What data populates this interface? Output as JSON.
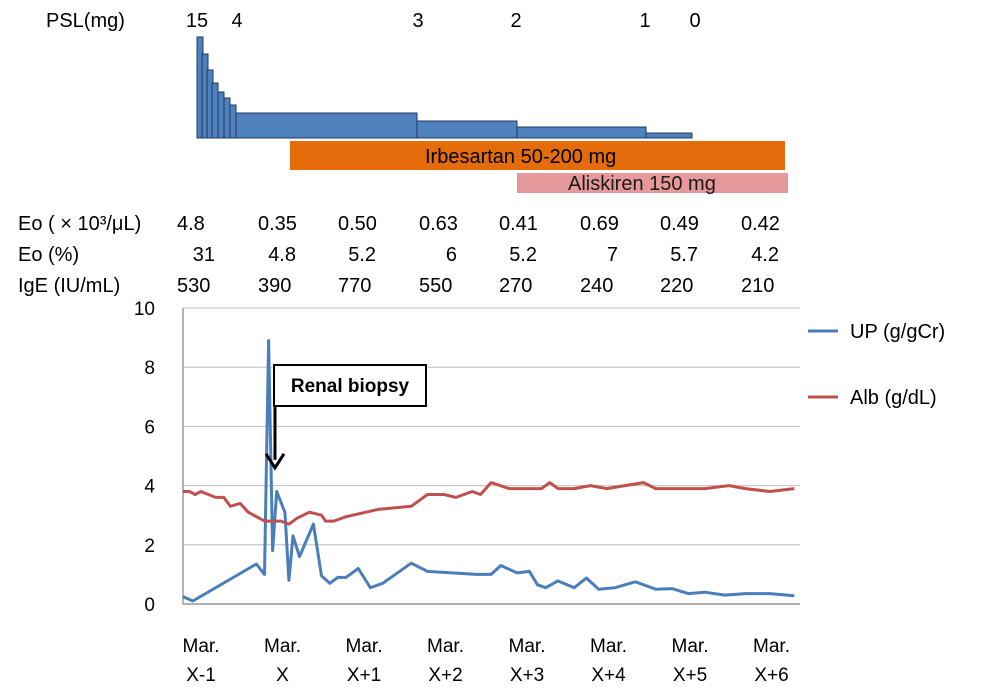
{
  "chart_data": {
    "type": "line",
    "psl": {
      "label": "PSL(mg)",
      "dose_labels": [
        "15",
        "4",
        "3",
        "2",
        "1",
        "0"
      ]
    },
    "drugs": [
      {
        "name": "Irbesartan 50-200 mg",
        "color": "#e46c0a",
        "start": 0.32,
        "end": 7.32
      },
      {
        "name": "Aliskiren 150 mg",
        "color": "#e6999a",
        "start": 3.05,
        "end": 7.32
      }
    ],
    "lab_table": {
      "rows": [
        {
          "label": "Eo ( × 10³/μL)",
          "values": [
            "4.8",
            "0.35",
            "0.50",
            "0.63",
            "0.41",
            "0.69",
            "0.49",
            "0.42"
          ]
        },
        {
          "label": "Eo (%)",
          "values": [
            "31",
            "4.8",
            "5.2",
            "6",
            "5.2",
            "7",
            "5.7",
            "4.2"
          ]
        },
        {
          "label": "IgE (IU/mL)",
          "values": [
            "530",
            "390",
            "770",
            "550",
            "270",
            "240",
            "220",
            "210"
          ]
        }
      ]
    },
    "categories": [
      "Mar.\nX-1",
      "Mar.\nX",
      "Mar.\nX+1",
      "Mar.\nX+2",
      "Mar.\nX+3",
      "Mar.\nX+4",
      "Mar.\nX+5",
      "Mar.\nX+6"
    ],
    "ylim": [
      0,
      10
    ],
    "yticks": [
      "0",
      "2",
      "4",
      "6",
      "8",
      "10"
    ],
    "annotation": {
      "text": "Renal biopsy",
      "x": 0.05,
      "y": 4.6
    },
    "series": [
      {
        "name": "UP (g/gCr)",
        "color": "#4a7ebb",
        "points": [
          [
            -1.0,
            0.25
          ],
          [
            -0.88,
            0.1
          ],
          [
            -0.1,
            1.35
          ],
          [
            0.0,
            1.0
          ],
          [
            0.05,
            8.9
          ],
          [
            0.1,
            1.8
          ],
          [
            0.15,
            3.8
          ],
          [
            0.25,
            3.1
          ],
          [
            0.3,
            0.8
          ],
          [
            0.35,
            2.3
          ],
          [
            0.43,
            1.6
          ],
          [
            0.6,
            2.7
          ],
          [
            0.7,
            0.95
          ],
          [
            0.8,
            0.7
          ],
          [
            0.9,
            0.9
          ],
          [
            1.0,
            0.9
          ],
          [
            1.15,
            1.2
          ],
          [
            1.3,
            0.55
          ],
          [
            1.45,
            0.7
          ],
          [
            1.8,
            1.38
          ],
          [
            2.0,
            1.1
          ],
          [
            2.3,
            1.05
          ],
          [
            2.6,
            1.0
          ],
          [
            2.78,
            1.0
          ],
          [
            2.9,
            1.3
          ],
          [
            3.1,
            1.05
          ],
          [
            3.25,
            1.1
          ],
          [
            3.35,
            0.65
          ],
          [
            3.45,
            0.55
          ],
          [
            3.6,
            0.78
          ],
          [
            3.8,
            0.55
          ],
          [
            3.95,
            0.88
          ],
          [
            4.1,
            0.5
          ],
          [
            4.3,
            0.55
          ],
          [
            4.55,
            0.75
          ],
          [
            4.8,
            0.5
          ],
          [
            5.0,
            0.52
          ],
          [
            5.2,
            0.35
          ],
          [
            5.4,
            0.4
          ],
          [
            5.65,
            0.3
          ],
          [
            5.9,
            0.35
          ],
          [
            6.2,
            0.35
          ],
          [
            6.5,
            0.28
          ]
        ]
      },
      {
        "name": "Alb (g/dL)",
        "color": "#c0504d",
        "points": [
          [
            -1.0,
            3.8
          ],
          [
            -0.92,
            3.8
          ],
          [
            -0.85,
            3.7
          ],
          [
            -0.78,
            3.8
          ],
          [
            -0.6,
            3.6
          ],
          [
            -0.5,
            3.6
          ],
          [
            -0.42,
            3.3
          ],
          [
            -0.3,
            3.4
          ],
          [
            -0.2,
            3.1
          ],
          [
            0.0,
            2.8
          ],
          [
            0.2,
            2.8
          ],
          [
            0.3,
            2.7
          ],
          [
            0.4,
            2.9
          ],
          [
            0.55,
            3.1
          ],
          [
            0.7,
            3.0
          ],
          [
            0.75,
            2.8
          ],
          [
            0.85,
            2.8
          ],
          [
            1.0,
            2.95
          ],
          [
            1.4,
            3.2
          ],
          [
            1.8,
            3.3
          ],
          [
            2.0,
            3.7
          ],
          [
            2.2,
            3.7
          ],
          [
            2.35,
            3.6
          ],
          [
            2.55,
            3.8
          ],
          [
            2.65,
            3.7
          ],
          [
            2.78,
            4.1
          ],
          [
            3.0,
            3.9
          ],
          [
            3.4,
            3.9
          ],
          [
            3.5,
            4.1
          ],
          [
            3.6,
            3.9
          ],
          [
            3.8,
            3.9
          ],
          [
            4.0,
            4.0
          ],
          [
            4.2,
            3.9
          ],
          [
            4.65,
            4.1
          ],
          [
            4.8,
            3.9
          ],
          [
            5.0,
            3.9
          ],
          [
            5.4,
            3.9
          ],
          [
            5.7,
            4.0
          ],
          [
            5.9,
            3.9
          ],
          [
            6.2,
            3.8
          ],
          [
            6.5,
            3.9
          ]
        ]
      }
    ]
  }
}
